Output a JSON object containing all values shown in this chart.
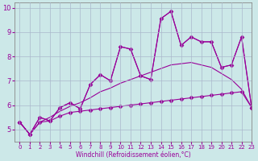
{
  "xlabel": "Windchill (Refroidissement éolien,°C)",
  "xlim": [
    -0.5,
    23
  ],
  "ylim": [
    4.5,
    10.2
  ],
  "yticks": [
    5,
    6,
    7,
    8,
    9,
    10
  ],
  "xticks": [
    0,
    1,
    2,
    3,
    4,
    5,
    6,
    7,
    8,
    9,
    10,
    11,
    12,
    13,
    14,
    15,
    16,
    17,
    18,
    19,
    20,
    21,
    22,
    23
  ],
  "background_color": "#cce8e8",
  "grid_color": "#aab8cc",
  "line_color": "#990099",
  "lines": [
    {
      "x": [
        0,
        1,
        2,
        3,
        4,
        5,
        6,
        7,
        8,
        9,
        10,
        11,
        12,
        13,
        14,
        15,
        16,
        17,
        18,
        19,
        20,
        21,
        22,
        23
      ],
      "y": [
        5.3,
        4.8,
        5.5,
        5.35,
        5.9,
        6.1,
        5.85,
        6.85,
        7.25,
        7.0,
        8.4,
        8.3,
        7.2,
        7.05,
        9.55,
        9.85,
        8.45,
        8.8,
        8.6,
        8.6,
        7.55,
        7.65,
        8.8,
        5.9
      ],
      "marker": "D",
      "ms": 2.5
    },
    {
      "x": [
        0,
        1,
        2,
        3,
        4,
        5,
        6,
        7,
        8,
        9,
        10,
        11,
        12,
        13,
        14,
        15,
        16,
        17,
        18,
        19,
        20,
        21,
        22,
        23
      ],
      "y": [
        5.3,
        4.8,
        5.5,
        5.35,
        5.9,
        6.1,
        5.85,
        6.85,
        7.25,
        7.0,
        8.4,
        8.3,
        7.2,
        7.05,
        9.55,
        9.85,
        8.45,
        8.8,
        8.6,
        8.6,
        7.55,
        7.65,
        8.8,
        5.9
      ],
      "marker": null,
      "ms": 0
    },
    {
      "x": [
        0,
        1,
        2,
        3,
        4,
        5,
        6,
        7,
        8,
        9,
        10,
        11,
        12,
        13,
        14,
        15,
        16,
        17,
        18,
        19,
        20,
        21,
        22,
        23
      ],
      "y": [
        5.3,
        4.8,
        5.3,
        5.5,
        5.75,
        5.95,
        6.1,
        6.3,
        6.55,
        6.7,
        6.9,
        7.05,
        7.2,
        7.35,
        7.5,
        7.65,
        7.7,
        7.75,
        7.65,
        7.55,
        7.3,
        7.05,
        6.65,
        5.9
      ],
      "marker": null,
      "ms": 0
    },
    {
      "x": [
        0,
        1,
        2,
        3,
        4,
        5,
        6,
        7,
        8,
        9,
        10,
        11,
        12,
        13,
        14,
        15,
        16,
        17,
        18,
        19,
        20,
        21,
        22,
        23
      ],
      "y": [
        5.3,
        4.8,
        5.3,
        5.35,
        5.55,
        5.7,
        5.75,
        5.8,
        5.85,
        5.9,
        5.95,
        6.0,
        6.05,
        6.1,
        6.15,
        6.2,
        6.25,
        6.3,
        6.35,
        6.4,
        6.45,
        6.5,
        6.55,
        5.9
      ],
      "marker": "D",
      "ms": 2.5
    }
  ]
}
